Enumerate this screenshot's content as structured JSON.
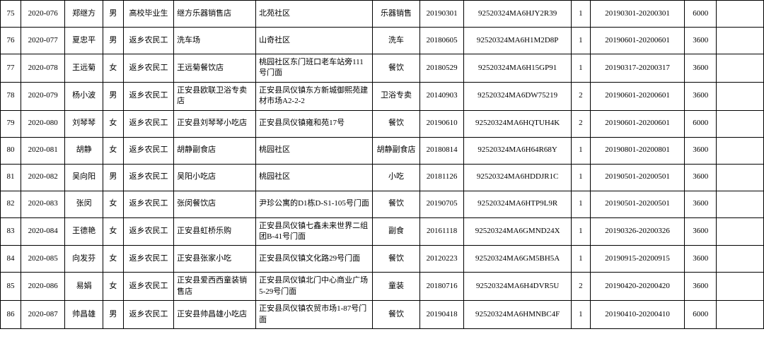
{
  "table": {
    "border_color": "#000000",
    "background_color": "#ffffff",
    "text_color": "#000000",
    "font_size": 11,
    "columns": [
      {
        "key": "idx",
        "class": "col-idx"
      },
      {
        "key": "code",
        "class": "col-code"
      },
      {
        "key": "name",
        "class": "col-name"
      },
      {
        "key": "sex",
        "class": "col-sex"
      },
      {
        "key": "cat",
        "class": "col-cat"
      },
      {
        "key": "shop",
        "class": "col-shop"
      },
      {
        "key": "addr",
        "class": "col-addr"
      },
      {
        "key": "biz",
        "class": "col-biz"
      },
      {
        "key": "date",
        "class": "col-date"
      },
      {
        "key": "reg",
        "class": "col-reg"
      },
      {
        "key": "n",
        "class": "col-n"
      },
      {
        "key": "range",
        "class": "col-range"
      },
      {
        "key": "amt",
        "class": "col-amt"
      },
      {
        "key": "last",
        "class": "col-last"
      }
    ],
    "rows": [
      {
        "idx": "75",
        "code": "2020-076",
        "name": "郑继方",
        "sex": "男",
        "cat": "高校毕业生",
        "shop": "继方乐器销售店",
        "addr": "北苑社区",
        "biz": "乐器销售",
        "date": "20190301",
        "reg": "92520324MA6HJY2R39",
        "n": "1",
        "range": "20190301-20200301",
        "amt": "6000",
        "last": ""
      },
      {
        "idx": "76",
        "code": "2020-077",
        "name": "夏忠平",
        "sex": "男",
        "cat": "返乡农民工",
        "shop": "洗车场",
        "addr": "山奇社区",
        "biz": "洗车",
        "date": "20180605",
        "reg": "92520324MA6H1M2D8P",
        "n": "1",
        "range": "20190601-20200601",
        "amt": "3600",
        "last": ""
      },
      {
        "idx": "77",
        "code": "2020-078",
        "name": "王远菊",
        "sex": "女",
        "cat": "返乡农民工",
        "shop": "王远菊餐饮店",
        "addr": "桃园社区东门班口老车站旁111号门面",
        "biz": "餐饮",
        "date": "20180529",
        "reg": "92520324MA6H15GP91",
        "n": "1",
        "range": "20190317-20200317",
        "amt": "3600",
        "last": ""
      },
      {
        "idx": "78",
        "code": "2020-079",
        "name": "杨小波",
        "sex": "男",
        "cat": "返乡农民工",
        "shop": "正安县欧联卫浴专卖店",
        "addr": "正安县凤仪镇东方新城御熙苑建材市场A2-2-2",
        "biz": "卫浴专卖",
        "date": "20140903",
        "reg": "92520324MA6DW75219",
        "n": "2",
        "range": "20190601-20200601",
        "amt": "3600",
        "last": ""
      },
      {
        "idx": "79",
        "code": "2020-080",
        "name": "刘琴琴",
        "sex": "女",
        "cat": "返乡农民工",
        "shop": "正安县刘琴琴小吃店",
        "addr": "正安县凤仪镇雍和苑17号",
        "biz": "餐饮",
        "date": "20190610",
        "reg": "92520324MA6HQTUH4K",
        "n": "2",
        "range": "20190601-20200601",
        "amt": "6000",
        "last": ""
      },
      {
        "idx": "80",
        "code": "2020-081",
        "name": "胡静",
        "sex": "女",
        "cat": "返乡农民工",
        "shop": "胡静副食店",
        "addr": "桃园社区",
        "biz": "胡静副食店",
        "date": "20180814",
        "reg": "92520324MA6H64R68Y",
        "n": "1",
        "range": "20190801-20200801",
        "amt": "3600",
        "last": ""
      },
      {
        "idx": "81",
        "code": "2020-082",
        "name": "吴向阳",
        "sex": "男",
        "cat": "返乡农民工",
        "shop": "吴阳小吃店",
        "addr": "桃园社区",
        "biz": "小吃",
        "date": "20181126",
        "reg": "92520324MA6HDDJR1C",
        "n": "1",
        "range": "20190501-20200501",
        "amt": "3600",
        "last": ""
      },
      {
        "idx": "82",
        "code": "2020-083",
        "name": "张闵",
        "sex": "女",
        "cat": "返乡农民工",
        "shop": "张闵餐饮店",
        "addr": "尹珍公寓的D1栋D-S1-105号门面",
        "biz": "餐饮",
        "date": "20190705",
        "reg": "92520324MA6HTP9L9R",
        "n": "1",
        "range": "20190501-20200501",
        "amt": "3600",
        "last": ""
      },
      {
        "idx": "83",
        "code": "2020-084",
        "name": "王德艳",
        "sex": "女",
        "cat": "返乡农民工",
        "shop": "正安县虹桥乐购",
        "addr": "正安县凤仪镇七鑫未来世界二组团B-41号门面",
        "biz": "副食",
        "date": "20161118",
        "reg": "92520324MA6GMND24X",
        "n": "1",
        "range": "20190326-20200326",
        "amt": "3600",
        "last": ""
      },
      {
        "idx": "84",
        "code": "2020-085",
        "name": "向发芬",
        "sex": "女",
        "cat": "返乡农民工",
        "shop": "正安县张家小吃",
        "addr": "正安县凤仪镇文化路29号门面",
        "biz": "餐饮",
        "date": "20120223",
        "reg": "92520324MA6GM5BH5A",
        "n": "1",
        "range": "20190915-20200915",
        "amt": "3600",
        "last": ""
      },
      {
        "idx": "85",
        "code": "2020-086",
        "name": "易娟",
        "sex": "女",
        "cat": "返乡农民工",
        "shop": "正安县爱西西童装销售店",
        "addr": "正安县凤仪镇北门中心商业广场5-29号门面",
        "biz": "童装",
        "date": "20180716",
        "reg": "92520324MA6H4DVR5U",
        "n": "2",
        "range": "20190420-20200420",
        "amt": "3600",
        "last": ""
      },
      {
        "idx": "86",
        "code": "2020-087",
        "name": "帅昌雄",
        "sex": "男",
        "cat": "返乡农民工",
        "shop": "正安县帅昌雄小吃店",
        "addr": "正安县凤仪镇农贸市场1-87号门面",
        "biz": "餐饮",
        "date": "20190418",
        "reg": "92520324MA6HMNBC4F",
        "n": "1",
        "range": "20190410-20200410",
        "amt": "6000",
        "last": ""
      }
    ]
  }
}
